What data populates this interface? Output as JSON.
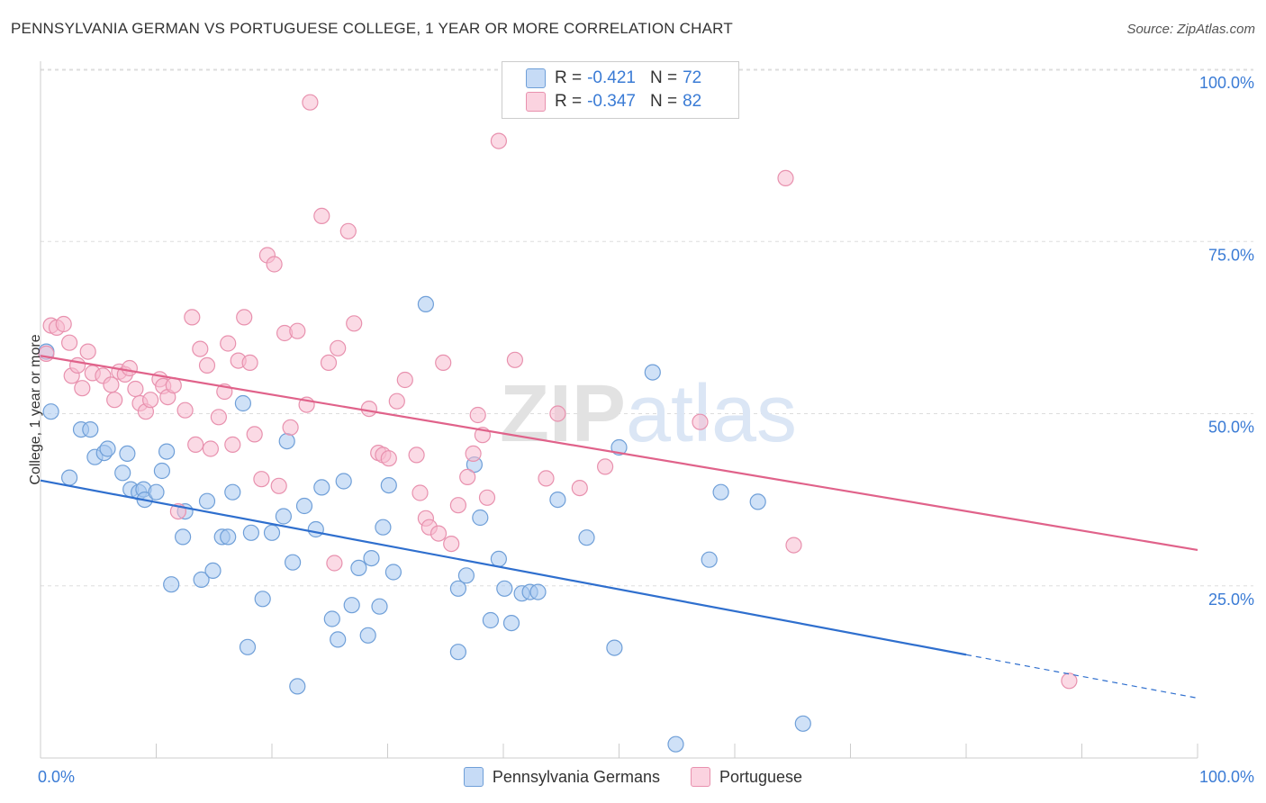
{
  "title": "PENNSYLVANIA GERMAN VS PORTUGUESE COLLEGE, 1 YEAR OR MORE CORRELATION CHART",
  "source": "Source: ZipAtlas.com",
  "watermark": "ZIPatlas",
  "legend": {
    "rows": [
      {
        "r_label": "R =",
        "r_value": "-0.421",
        "n_label": "N =",
        "n_value": "72"
      },
      {
        "r_label": "R =",
        "r_value": "-0.347",
        "n_label": "N =",
        "n_value": "82"
      }
    ]
  },
  "colors": {
    "blue_fill": "#a8c8f0",
    "blue_stroke": "#6f9fd8",
    "blue_line": "#2f6fce",
    "pink_fill": "#f7bcd0",
    "pink_stroke": "#e891ae",
    "pink_line": "#e0628a",
    "axis_text": "#3a7bd5"
  },
  "chart_data": {
    "type": "scatter",
    "title": "PENNSYLVANIA GERMAN VS PORTUGUESE COLLEGE, 1 YEAR OR MORE CORRELATION CHART",
    "xlabel": "",
    "ylabel": "College, 1 year or more",
    "xlim": [
      0,
      100
    ],
    "ylim": [
      0,
      100
    ],
    "x_tick_labels": [
      "0.0%",
      "100.0%"
    ],
    "y_tick_labels": [
      "100.0%",
      "75.0%",
      "50.0%",
      "25.0%"
    ],
    "y_tick_values": [
      100,
      75,
      50,
      25
    ],
    "grid": true,
    "legend_position": "bottom",
    "series": [
      {
        "name": "Pennsylvania Germans",
        "r": -0.421,
        "n": 72,
        "trend": {
          "x": [
            0,
            80
          ],
          "y": [
            40.3,
            15.0
          ],
          "dashed_to": [
            100,
            8.7
          ]
        },
        "points": [
          [
            0.5,
            59
          ],
          [
            0.9,
            50.3
          ],
          [
            2.5,
            40.7
          ],
          [
            3.5,
            47.7
          ],
          [
            4.3,
            47.7
          ],
          [
            4.7,
            43.7
          ],
          [
            5.5,
            44.3
          ],
          [
            5.8,
            44.9
          ],
          [
            7.1,
            41.4
          ],
          [
            7.5,
            44.2
          ],
          [
            7.8,
            39
          ],
          [
            8.5,
            38.6
          ],
          [
            8.9,
            39
          ],
          [
            9,
            37.5
          ],
          [
            10,
            38.6
          ],
          [
            10.5,
            41.7
          ],
          [
            10.9,
            44.5
          ],
          [
            11.3,
            25.2
          ],
          [
            12.3,
            32.1
          ],
          [
            12.5,
            35.8
          ],
          [
            13.9,
            25.9
          ],
          [
            14.4,
            37.3
          ],
          [
            14.9,
            27.2
          ],
          [
            15.7,
            32.1
          ],
          [
            16.2,
            32.1
          ],
          [
            16.6,
            38.6
          ],
          [
            17.5,
            51.5
          ],
          [
            17.9,
            16.1
          ],
          [
            18.2,
            32.7
          ],
          [
            19.2,
            23.1
          ],
          [
            20,
            32.7
          ],
          [
            21,
            35.1
          ],
          [
            21.3,
            46
          ],
          [
            21.8,
            28.4
          ],
          [
            22.2,
            10.4
          ],
          [
            22.8,
            36.6
          ],
          [
            23.8,
            33.2
          ],
          [
            24.3,
            39.3
          ],
          [
            25.2,
            20.2
          ],
          [
            25.7,
            17.2
          ],
          [
            26.2,
            40.2
          ],
          [
            26.9,
            22.2
          ],
          [
            27.5,
            27.6
          ],
          [
            28.3,
            17.8
          ],
          [
            28.6,
            29
          ],
          [
            29.3,
            22
          ],
          [
            29.6,
            33.5
          ],
          [
            30.1,
            39.6
          ],
          [
            30.5,
            27
          ],
          [
            33.3,
            65.9
          ],
          [
            36.1,
            15.4
          ],
          [
            36.1,
            24.6
          ],
          [
            36.8,
            26.5
          ],
          [
            37.5,
            42.6
          ],
          [
            38,
            34.9
          ],
          [
            38.9,
            20
          ],
          [
            39.6,
            28.9
          ],
          [
            40.1,
            24.6
          ],
          [
            40.7,
            19.6
          ],
          [
            41.6,
            23.9
          ],
          [
            42.3,
            24.1
          ],
          [
            43,
            24.1
          ],
          [
            44.7,
            37.5
          ],
          [
            47.2,
            32
          ],
          [
            49.6,
            16
          ],
          [
            50,
            45.1
          ],
          [
            52.9,
            56
          ],
          [
            54.9,
            2
          ],
          [
            57.8,
            28.8
          ],
          [
            58.8,
            38.6
          ],
          [
            62,
            37.2
          ],
          [
            65.9,
            5
          ]
        ]
      },
      {
        "name": "Portuguese",
        "r": -0.347,
        "n": 82,
        "trend": {
          "x": [
            0,
            100
          ],
          "y": [
            58.4,
            30.2
          ]
        },
        "points": [
          [
            0.5,
            58.7
          ],
          [
            0.9,
            62.8
          ],
          [
            1.4,
            62.5
          ],
          [
            2,
            63
          ],
          [
            2.5,
            60.3
          ],
          [
            2.7,
            55.5
          ],
          [
            3.2,
            57
          ],
          [
            3.6,
            53.7
          ],
          [
            4.1,
            59
          ],
          [
            4.5,
            55.9
          ],
          [
            5.4,
            55.5
          ],
          [
            6.1,
            54.2
          ],
          [
            6.4,
            52
          ],
          [
            6.8,
            56.1
          ],
          [
            7.3,
            55.7
          ],
          [
            7.7,
            56.6
          ],
          [
            8.2,
            53.6
          ],
          [
            8.6,
            51.5
          ],
          [
            9.1,
            50.3
          ],
          [
            9.5,
            52
          ],
          [
            10.3,
            55
          ],
          [
            10.6,
            54
          ],
          [
            11,
            52.4
          ],
          [
            11.5,
            54.1
          ],
          [
            11.9,
            35.8
          ],
          [
            12.5,
            50.5
          ],
          [
            13.1,
            64
          ],
          [
            13.4,
            45.5
          ],
          [
            13.8,
            59.4
          ],
          [
            14.4,
            57
          ],
          [
            14.7,
            44.9
          ],
          [
            15.4,
            49.5
          ],
          [
            15.9,
            53.2
          ],
          [
            16.2,
            60.2
          ],
          [
            16.6,
            45.5
          ],
          [
            17.1,
            57.7
          ],
          [
            17.6,
            64
          ],
          [
            18.1,
            57.4
          ],
          [
            18.5,
            47
          ],
          [
            19.1,
            40.5
          ],
          [
            19.6,
            73
          ],
          [
            20.2,
            71.7
          ],
          [
            20.6,
            39.5
          ],
          [
            21.1,
            61.7
          ],
          [
            21.6,
            48
          ],
          [
            22.2,
            62
          ],
          [
            23,
            51.3
          ],
          [
            23.3,
            95.2
          ],
          [
            24.3,
            78.7
          ],
          [
            24.9,
            57.4
          ],
          [
            25.4,
            28.3
          ],
          [
            25.7,
            59.5
          ],
          [
            26.6,
            76.5
          ],
          [
            27.1,
            63.1
          ],
          [
            28.4,
            50.7
          ],
          [
            29.2,
            44.3
          ],
          [
            29.6,
            44
          ],
          [
            30.1,
            43.5
          ],
          [
            30.8,
            51.8
          ],
          [
            31.5,
            54.9
          ],
          [
            32.5,
            44
          ],
          [
            32.8,
            38.5
          ],
          [
            33.3,
            34.8
          ],
          [
            33.6,
            33.5
          ],
          [
            34.4,
            32.6
          ],
          [
            34.8,
            57.4
          ],
          [
            35.5,
            31.1
          ],
          [
            36.1,
            36.7
          ],
          [
            36.9,
            40.8
          ],
          [
            37.4,
            44.2
          ],
          [
            37.8,
            49.8
          ],
          [
            38.2,
            46.9
          ],
          [
            38.6,
            37.8
          ],
          [
            39.6,
            89.6
          ],
          [
            41,
            57.8
          ],
          [
            43.7,
            40.6
          ],
          [
            44.7,
            50
          ],
          [
            46.6,
            39.2
          ],
          [
            48.8,
            42.3
          ],
          [
            57,
            48.8
          ],
          [
            64.4,
            84.2
          ],
          [
            65.1,
            30.9
          ],
          [
            88.9,
            11.2
          ]
        ]
      }
    ]
  }
}
